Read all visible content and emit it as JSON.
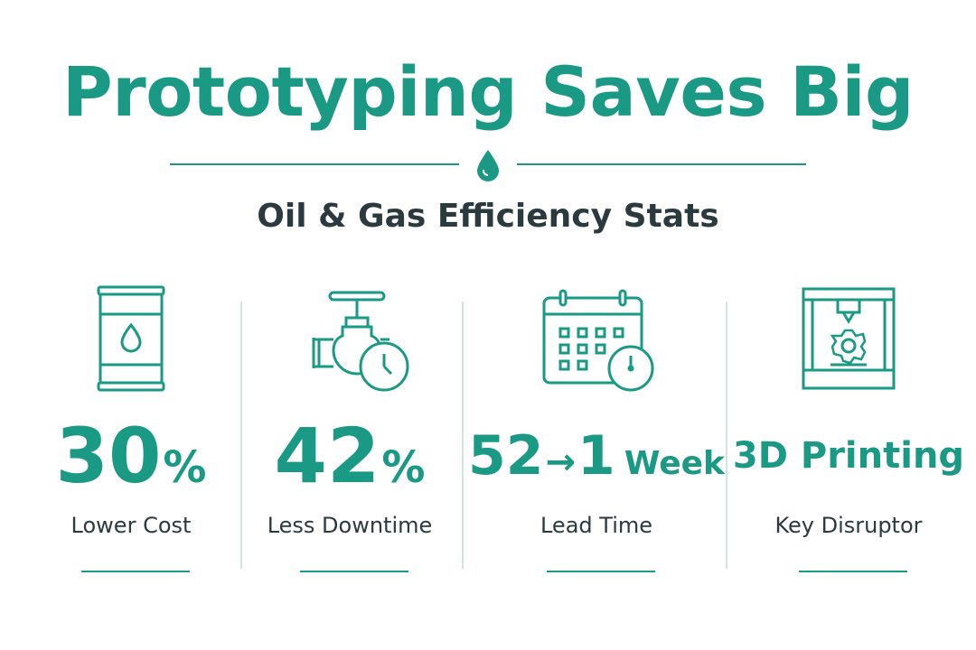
{
  "title": "Prototyping Saves Big",
  "subtitle": "Oil & Gas Efficiency Stats",
  "accent_color": "#1a9a85",
  "text_color": "#2b3a3f",
  "divider_icon": "oil-drop-icon",
  "stats": [
    {
      "icon": "oil-barrel-icon",
      "value": "30",
      "suffix": "%",
      "label": "Lower Cost"
    },
    {
      "icon": "valve-clock-icon",
      "value": "42",
      "suffix": "%",
      "label": "Less Downtime"
    },
    {
      "icon": "calendar-clock-icon",
      "value_from": "52",
      "arrow": "→",
      "value_to": "1",
      "unit": "Week",
      "label": "Lead Time"
    },
    {
      "icon": "3d-printer-icon",
      "value": "3D Printing",
      "label": "Key Disruptor"
    }
  ]
}
